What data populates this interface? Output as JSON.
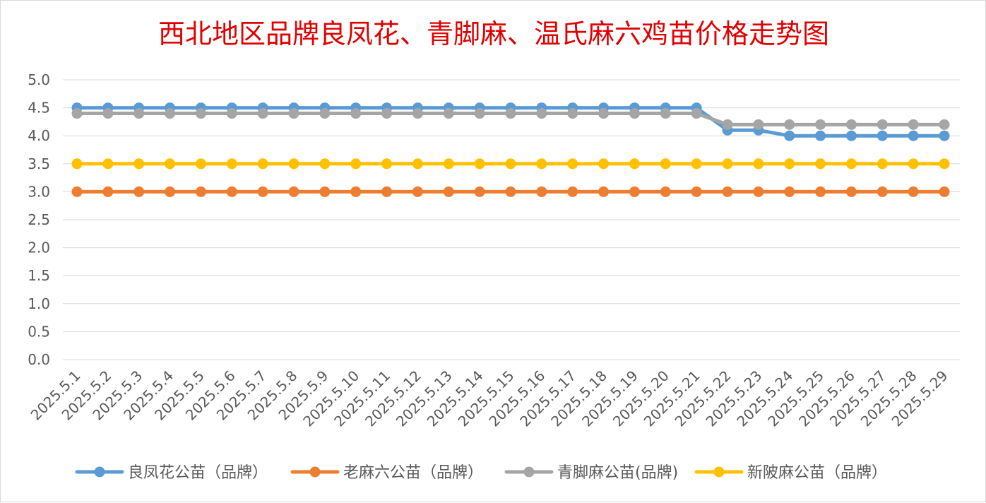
{
  "chart_data": {
    "type": "line",
    "title": "西北地区品牌良凤花、青脚麻、温氏麻六鸡苗价格走势图",
    "xlabel": "",
    "ylabel": "",
    "ylim": [
      0,
      5
    ],
    "y_ticks": [
      "0.0",
      "0.5",
      "1.0",
      "1.5",
      "2.0",
      "2.5",
      "3.0",
      "3.5",
      "4.0",
      "4.5",
      "5.0"
    ],
    "grid": true,
    "legend_position": "bottom",
    "categories": [
      "2025.5.1",
      "2025.5.2",
      "2025.5.3",
      "2025.5.4",
      "2025.5.5",
      "2025.5.6",
      "2025.5.7",
      "2025.5.8",
      "2025.5.9",
      "2025.5.10",
      "2025.5.11",
      "2025.5.12",
      "2025.5.13",
      "2025.5.14",
      "2025.5.15",
      "2025.5.16",
      "2025.5.17",
      "2025.5.18",
      "2025.5.19",
      "2025.5.20",
      "2025.5.21",
      "2025.5.22",
      "2025.5.23",
      "2025.5.24",
      "2025.5.25",
      "2025.5.26",
      "2025.5.27",
      "2025.5.28",
      "2025.5.29"
    ],
    "series": [
      {
        "name": "良凤花公苗（品牌）",
        "color": "#5b9bd5",
        "values": [
          4.5,
          4.5,
          4.5,
          4.5,
          4.5,
          4.5,
          4.5,
          4.5,
          4.5,
          4.5,
          4.5,
          4.5,
          4.5,
          4.5,
          4.5,
          4.5,
          4.5,
          4.5,
          4.5,
          4.5,
          4.5,
          4.1,
          4.1,
          4.0,
          4.0,
          4.0,
          4.0,
          4.0,
          4.0
        ]
      },
      {
        "name": "老麻六公苗（品牌）",
        "color": "#ed7d31",
        "values": [
          3.0,
          3.0,
          3.0,
          3.0,
          3.0,
          3.0,
          3.0,
          3.0,
          3.0,
          3.0,
          3.0,
          3.0,
          3.0,
          3.0,
          3.0,
          3.0,
          3.0,
          3.0,
          3.0,
          3.0,
          3.0,
          3.0,
          3.0,
          3.0,
          3.0,
          3.0,
          3.0,
          3.0,
          3.0
        ]
      },
      {
        "name": "青脚麻公苗(品牌)",
        "color": "#a5a5a5",
        "values": [
          4.4,
          4.4,
          4.4,
          4.4,
          4.4,
          4.4,
          4.4,
          4.4,
          4.4,
          4.4,
          4.4,
          4.4,
          4.4,
          4.4,
          4.4,
          4.4,
          4.4,
          4.4,
          4.4,
          4.4,
          4.4,
          4.2,
          4.2,
          4.2,
          4.2,
          4.2,
          4.2,
          4.2,
          4.2
        ]
      },
      {
        "name": "新陂麻公苗（品牌）",
        "color": "#ffc000",
        "values": [
          3.5,
          3.5,
          3.5,
          3.5,
          3.5,
          3.5,
          3.5,
          3.5,
          3.5,
          3.5,
          3.5,
          3.5,
          3.5,
          3.5,
          3.5,
          3.5,
          3.5,
          3.5,
          3.5,
          3.5,
          3.5,
          3.5,
          3.5,
          3.5,
          3.5,
          3.5,
          3.5,
          3.5,
          3.5
        ]
      }
    ],
    "colors": {
      "title": "#e00000",
      "grid": "#d9d9d9",
      "tick_text": "#595959"
    }
  }
}
